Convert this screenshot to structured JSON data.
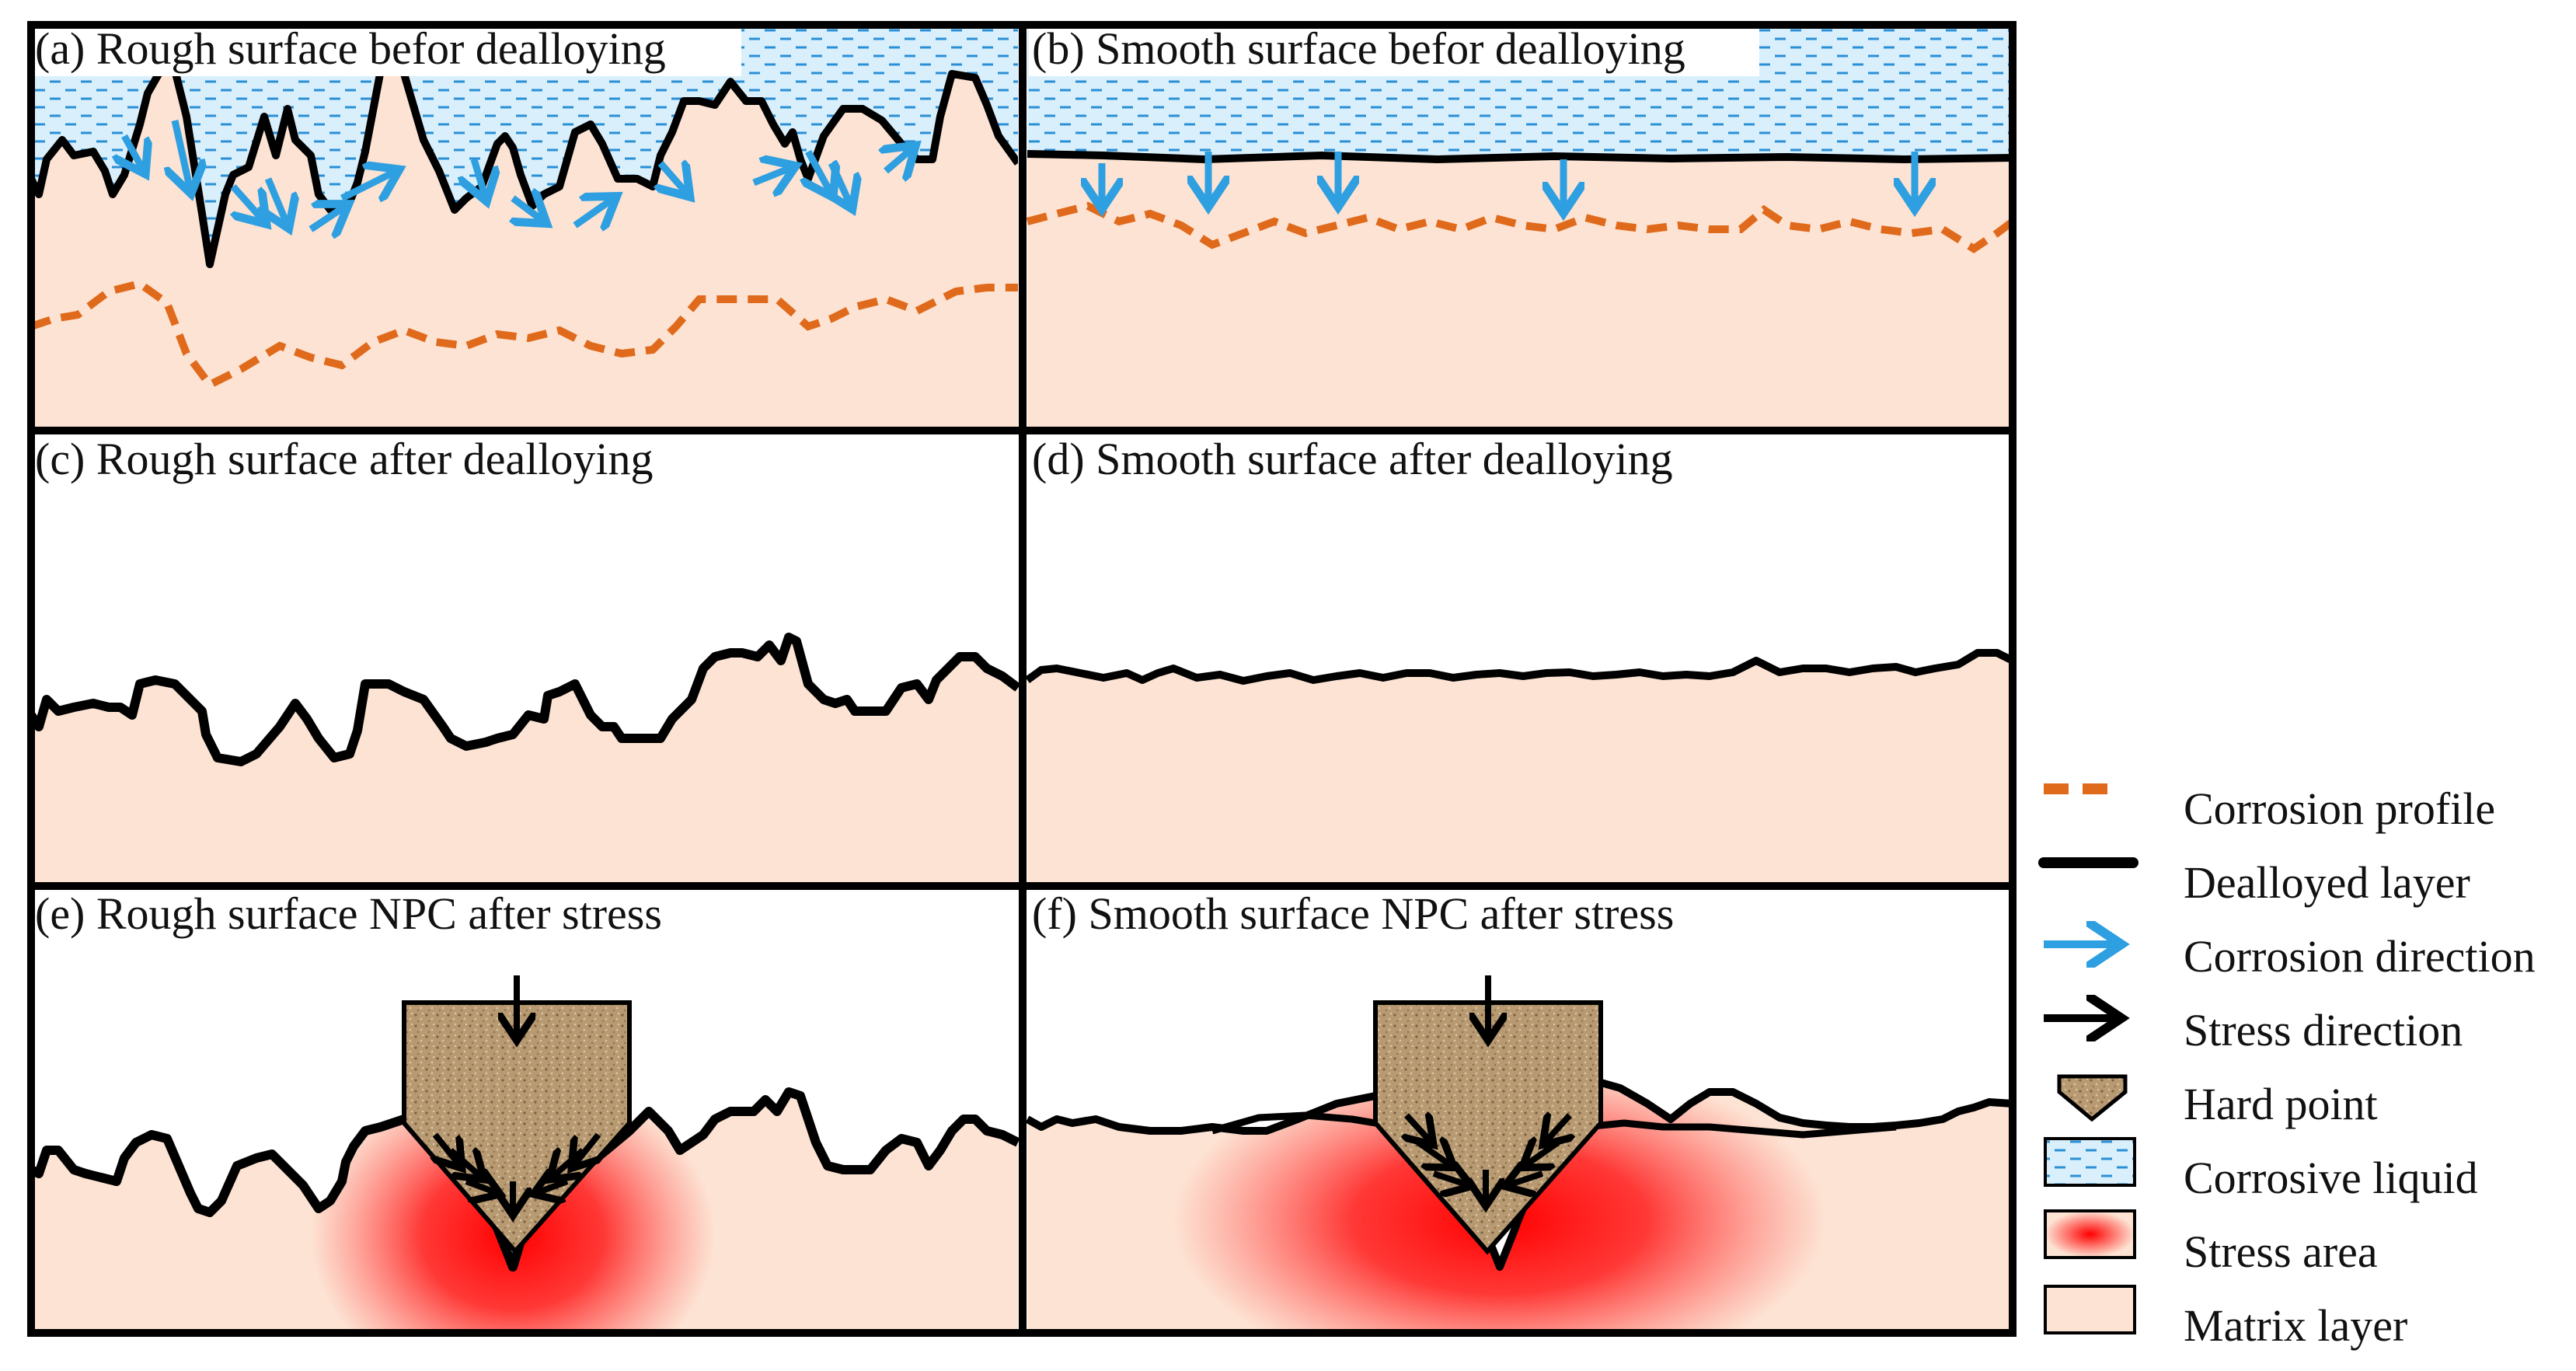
{
  "panels": [
    {
      "id": "a",
      "title": "(a) Rough surface befor dealloying"
    },
    {
      "id": "b",
      "title": "(b) Smooth surface befor dealloying"
    },
    {
      "id": "c",
      "title": "(c) Rough surface after dealloying"
    },
    {
      "id": "d",
      "title": "(d) Smooth surface after dealloying"
    },
    {
      "id": "e",
      "title": "(e) Rough surface NPC after stress"
    },
    {
      "id": "f",
      "title": "(f) Smooth surface NPC after stress"
    }
  ],
  "legend": {
    "items": [
      {
        "label": "Corrosion profile",
        "icon": "dashed-line-icon"
      },
      {
        "label": "Dealloyed layer",
        "icon": "thick-line-icon"
      },
      {
        "label": "Corrosion direction",
        "icon": "blue-arrow-icon"
      },
      {
        "label": "Stress direction",
        "icon": "black-arrow-icon"
      },
      {
        "label": "Hard point",
        "icon": "hard-point-icon"
      },
      {
        "label": "Corrosive liquid",
        "icon": "liquid-swatch-icon"
      },
      {
        "label": "Stress area",
        "icon": "stress-swatch-icon"
      },
      {
        "label": "Matrix layer",
        "icon": "matrix-swatch-icon"
      }
    ]
  },
  "colors": {
    "matrix": "#fde3d3",
    "liquid": "#cfeafb",
    "liquid_dash": "#2b8fd6",
    "corrosion_profile": "#e06a1c",
    "corrosion_arrow": "#2e9fe0",
    "dealloyed_layer": "#000000",
    "stress": "#ff0000",
    "hard_point": "#b89a72"
  }
}
